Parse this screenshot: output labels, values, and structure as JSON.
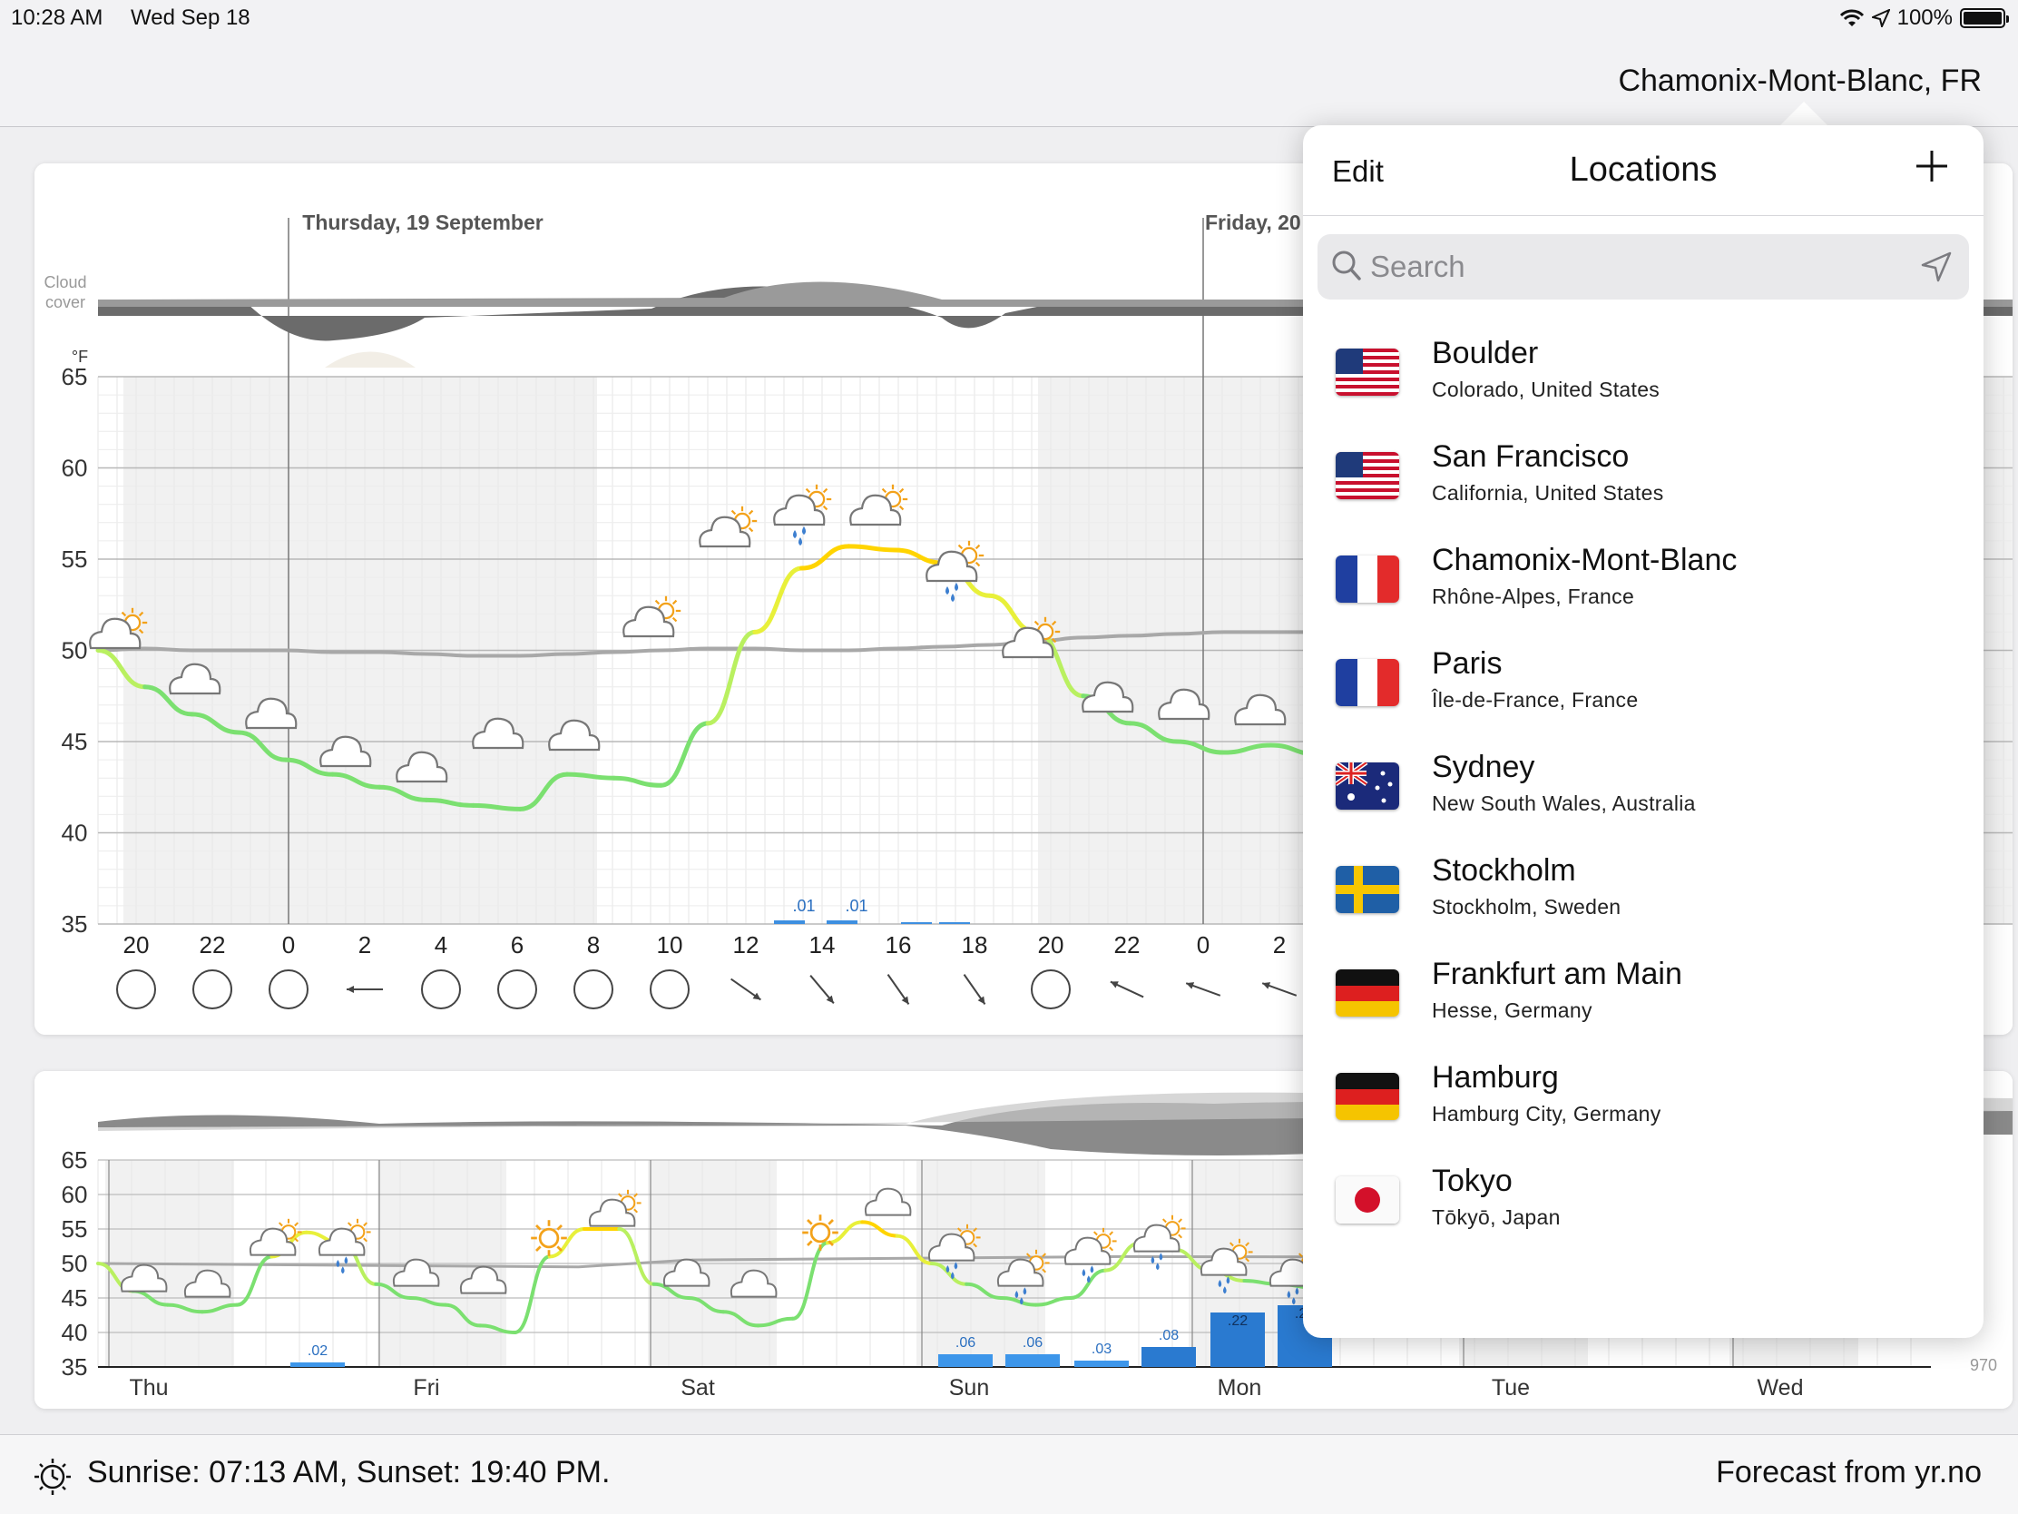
{
  "status_bar": {
    "time": "10:28 AM",
    "date": "Wed Sep 18",
    "battery": "100%"
  },
  "nav": {
    "title": "Chamonix-Mont-Blanc, FR"
  },
  "chart_data": [
    {
      "type": "line",
      "title": "",
      "headers": [
        "Thursday, 19 September",
        "Friday, 20"
      ],
      "side_labels": [
        "Cloud",
        "cover"
      ],
      "y_unit": "°F",
      "yticks": [
        35,
        40,
        45,
        50,
        55,
        60,
        65
      ],
      "ylim": [
        35,
        65
      ],
      "x_tick_labels": [
        "20",
        "22",
        "0",
        "2",
        "4",
        "6",
        "8",
        "10",
        "12",
        "14",
        "16",
        "18",
        "20",
        "22",
        "0",
        "2"
      ],
      "series": [
        {
          "name": "",
          "values": [
            50.0,
            48.0,
            46.5,
            45.5,
            44.0,
            43.2,
            42.5,
            41.8,
            41.5,
            41.3,
            43.2,
            43.0,
            42.6,
            46.0,
            51.0,
            54.5,
            55.7,
            55.5,
            54.8,
            53.0,
            51.0,
            47.5,
            46.0,
            45.0,
            44.4,
            44.8,
            44.3,
            43.6
          ]
        },
        {
          "name": "",
          "values": [
            50.0,
            50.1,
            50.0,
            50.0,
            50.0,
            49.9,
            49.9,
            49.8,
            49.7,
            49.7,
            49.8,
            49.9,
            50.0,
            50.1,
            50.1,
            50.0,
            50.0,
            50.1,
            50.2,
            50.3,
            50.5,
            50.7,
            50.8,
            50.9,
            51.0,
            51.0,
            51.0,
            51.0
          ]
        }
      ],
      "precipitation": [
        {
          "hour": "13",
          "value": ".01"
        },
        {
          "hour": "14",
          "value": ".01"
        }
      ]
    },
    {
      "type": "line",
      "title": "",
      "yticks": [
        35,
        40,
        45,
        50,
        55,
        60,
        65
      ],
      "ylim": [
        35,
        65
      ],
      "x_tick_labels": [
        "Thu",
        "Fri",
        "Sat",
        "Sun",
        "Mon",
        "Tue",
        "Wed"
      ],
      "right_label": "970",
      "precipitation": [
        {
          "day": "Thu",
          "value": ".02"
        },
        {
          "day": "Sun",
          "value": ".06"
        },
        {
          "day": "Sun",
          "value": ".06"
        },
        {
          "day": "Sun",
          "value": ".03"
        },
        {
          "day": "Mon",
          "value": ".08"
        },
        {
          "day": "Mon",
          "value": ".22"
        },
        {
          "day": "Mon",
          "value": ".23"
        }
      ]
    }
  ],
  "locations_popover": {
    "edit_label": "Edit",
    "title": "Locations",
    "search_placeholder": "Search",
    "items": [
      {
        "name": "Boulder",
        "region": "Colorado, United States",
        "flag": "us-flag-icon"
      },
      {
        "name": "San Francisco",
        "region": "California, United States",
        "flag": "us-flag-icon"
      },
      {
        "name": "Chamonix-Mont-Blanc",
        "region": "Rhône-Alpes, France",
        "flag": "fr-flag-icon"
      },
      {
        "name": "Paris",
        "region": "Île-de-France, France",
        "flag": "fr-flag-icon"
      },
      {
        "name": "Sydney",
        "region": "New South Wales, Australia",
        "flag": "au-flag-icon"
      },
      {
        "name": "Stockholm",
        "region": "Stockholm, Sweden",
        "flag": "se-flag-icon"
      },
      {
        "name": "Frankfurt am Main",
        "region": "Hesse, Germany",
        "flag": "de-flag-icon"
      },
      {
        "name": "Hamburg",
        "region": "Hamburg City, Germany",
        "flag": "de-flag-icon"
      },
      {
        "name": "Tokyo",
        "region": "Tōkyō, Japan",
        "flag": "jp-flag-icon"
      }
    ]
  },
  "footer": {
    "sun_text": "Sunrise: 07:13 AM, Sunset: 19:40 PM.",
    "source_text": "Forecast from yr.no"
  }
}
